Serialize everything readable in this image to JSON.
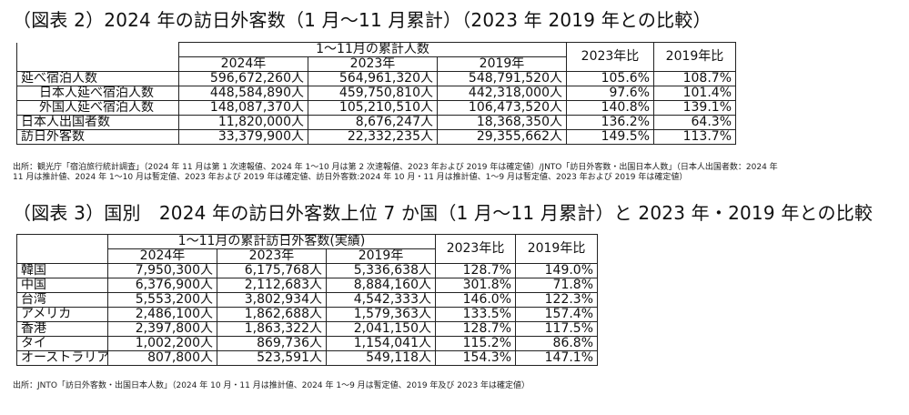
{
  "fig2": {
    "title": "（図表 2）2024 年の訪日外客数（1 月～11 月累計）（2023 年 2019 年との比較）",
    "group_header": "1～11月の累計人数",
    "years": [
      "2024年",
      "2023年",
      "2019年"
    ],
    "ratio_headers": [
      "2023年比",
      "2019年比"
    ],
    "rows": [
      {
        "label": "延べ宿泊人数",
        "v2024": "596,672,260人",
        "v2023": "564,961,320人",
        "v2019": "548,791,520人",
        "r2023": "105.6%",
        "r2019": "108.7%"
      },
      {
        "label": "日本人延べ宿泊人数",
        "v2024": "448,584,890人",
        "v2023": "459,750,810人",
        "v2019": "442,318,000人",
        "r2023": "97.6%",
        "r2019": "101.4%"
      },
      {
        "label": "外国人延べ宿泊人数",
        "v2024": "148,087,370人",
        "v2023": "105,210,510人",
        "v2019": "106,473,520人",
        "r2023": "140.8%",
        "r2019": "139.1%"
      },
      {
        "label": "日本人出国者数",
        "v2024": "11,820,000人",
        "v2023": "8,676,247人",
        "v2019": "18,368,350人",
        "r2023": "136.2%",
        "r2019": "64.3%"
      },
      {
        "label": "訪日外客数",
        "v2024": "33,379,900人",
        "v2023": "22,332,235人",
        "v2019": "29,355,662人",
        "r2023": "149.5%",
        "r2019": "113.7%"
      }
    ],
    "source_line1": "出所：観光庁「宿泊旅行統計調査」（2024 年 11 月は第 1 次速報値、2024 年 1～10 月は第 2 次速報値、2023 年および 2019 年は確定値）/JNTO「訪日外客数・出国日本人数」（日本人出国者数：2024 年",
    "source_line2": "11 月は推計値、2024 年 1～10 月は暫定値、2023 年および 2019 年は確定値、訪日外客数:2024 年 10 月・11 月は推計値、1～9 月は暫定値、2023 年および 2019 年は確定値）"
  },
  "fig3": {
    "title": "（図表 3）国別　2024 年の訪日外客数上位 7 か国（1 月～11 月累計）と 2023 年・2019 年との比較",
    "group_header": "1～11月の累計訪日外客数(実績)",
    "years": [
      "2024年",
      "2023年",
      "2019年"
    ],
    "ratio_headers": [
      "2023年比",
      "2019年比"
    ],
    "rows": [
      {
        "label": "韓国",
        "v2024": "7,950,300人",
        "v2023": "6,175,768人",
        "v2019": "5,336,638人",
        "r2023": "128.7%",
        "r2019": "149.0%"
      },
      {
        "label": "中国",
        "v2024": "6,376,900人",
        "v2023": "2,112,683人",
        "v2019": "8,884,160人",
        "r2023": "301.8%",
        "r2019": "71.8%"
      },
      {
        "label": "台湾",
        "v2024": "5,553,200人",
        "v2023": "3,802,934人",
        "v2019": "4,542,333人",
        "r2023": "146.0%",
        "r2019": "122.3%"
      },
      {
        "label": "アメリカ",
        "v2024": "2,486,100人",
        "v2023": "1,862,688人",
        "v2019": "1,579,363人",
        "r2023": "133.5%",
        "r2019": "157.4%"
      },
      {
        "label": "香港",
        "v2024": "2,397,800人",
        "v2023": "1,863,322人",
        "v2019": "2,041,150人",
        "r2023": "128.7%",
        "r2019": "117.5%"
      },
      {
        "label": "タイ",
        "v2024": "1,002,200人",
        "v2023": "869,736人",
        "v2019": "1,154,041人",
        "r2023": "115.2%",
        "r2019": "86.8%"
      },
      {
        "label": "オーストラリア",
        "v2024": "807,800人",
        "v2023": "523,591人",
        "v2019": "549,118人",
        "r2023": "154.3%",
        "r2019": "147.1%"
      }
    ],
    "source": "出所：JNTO「訪日外客数・出国日本人数」（2024 年 10 月・11 月は推計値、2024 年 1～9 月は暫定値、2019 年及び 2023 年は確定値）"
  }
}
